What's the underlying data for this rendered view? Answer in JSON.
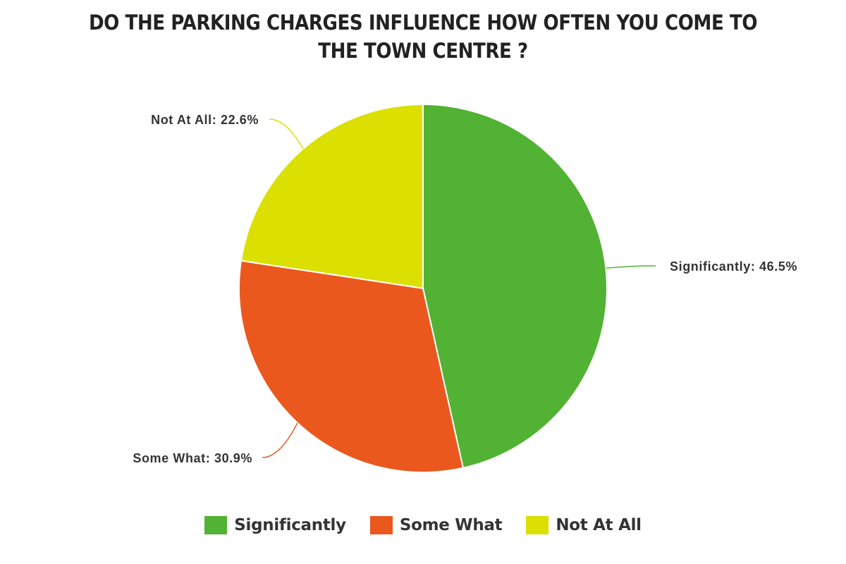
{
  "chart_data": {
    "type": "pie",
    "title": "DO THE PARKING CHARGES INFLUENCE HOW OFTEN YOU COME TO THE TOWN CENTRE ?",
    "slices": [
      {
        "name": "Significantly",
        "value": 46.5,
        "label": "Significantly: 46.5%",
        "color": "#52b233"
      },
      {
        "name": "Some What",
        "value": 30.9,
        "label": "Some  What: 30.9%",
        "color": "#ea581e"
      },
      {
        "name": "Not At All",
        "value": 22.6,
        "label": "Not At All: 22.6%",
        "color": "#dbe000"
      }
    ],
    "legend": {
      "position": "bottom",
      "entries": [
        "Significantly",
        "Some What",
        "Not At All"
      ]
    },
    "start_angle": "12 o'clock",
    "direction": "clockwise"
  }
}
